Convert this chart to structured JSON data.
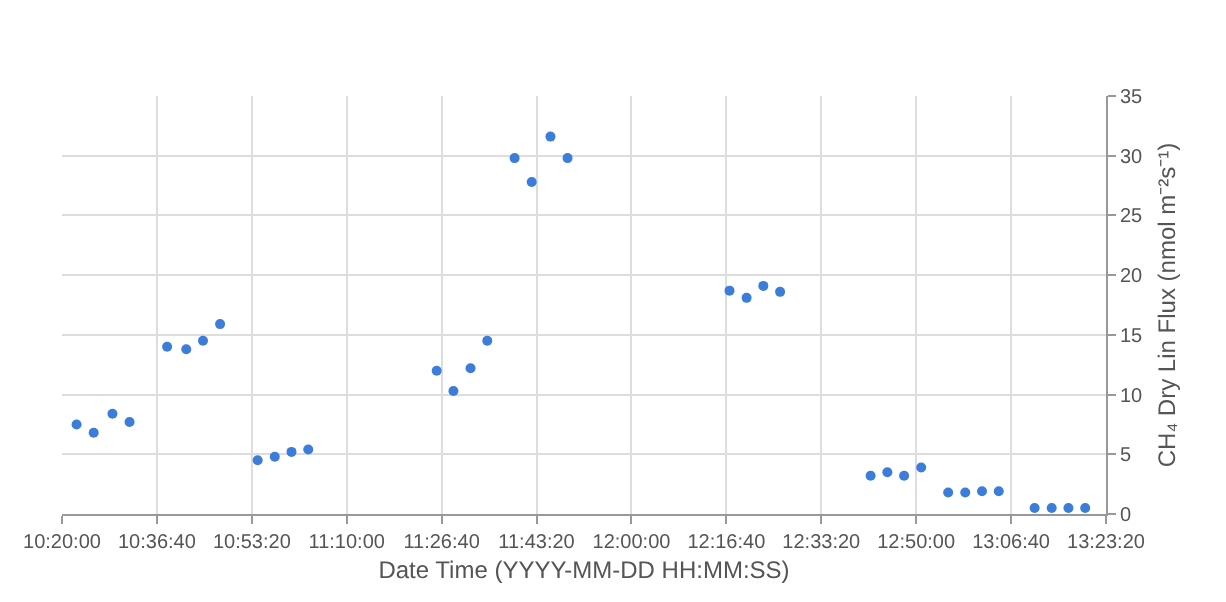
{
  "chart_data": {
    "type": "scatter",
    "xlabel": "Date Time (YYYY-MM-DD HH:MM:SS)",
    "ylabel": "CH₄ Dry Lin Flux (nmol m⁻²s⁻¹)",
    "x": [
      10.376,
      10.426,
      10.481,
      10.531,
      10.641,
      10.697,
      10.746,
      10.796,
      10.906,
      10.956,
      11.005,
      11.054,
      11.43,
      11.479,
      11.529,
      11.578,
      11.658,
      11.708,
      11.763,
      11.813,
      12.287,
      12.337,
      12.386,
      12.435,
      12.7,
      12.749,
      12.798,
      12.848,
      12.927,
      12.977,
      13.026,
      13.075,
      13.18,
      13.23,
      13.279,
      13.328
    ],
    "series": [
      {
        "color": "#3b7dd8",
        "values": [
          7.5,
          6.8,
          8.4,
          7.7,
          14.0,
          13.8,
          14.5,
          15.9,
          4.5,
          4.8,
          5.2,
          5.4,
          12.0,
          10.3,
          12.2,
          14.5,
          29.8,
          27.8,
          31.6,
          29.8,
          18.7,
          18.1,
          19.1,
          18.6,
          3.2,
          3.5,
          3.2,
          3.9,
          1.8,
          1.8,
          1.9,
          1.9,
          0.5,
          0.5,
          0.5,
          0.5
        ]
      }
    ],
    "xlim": [
      10.3333,
      13.3889
    ],
    "xticks": [
      {
        "value": 10.3333,
        "label": "10:20:00"
      },
      {
        "value": 10.6111,
        "label": "10:36:40"
      },
      {
        "value": 10.8889,
        "label": "10:53:20"
      },
      {
        "value": 11.1667,
        "label": "11:10:00"
      },
      {
        "value": 11.4444,
        "label": "11:26:40"
      },
      {
        "value": 11.7222,
        "label": "11:43:20"
      },
      {
        "value": 12.0,
        "label": "12:00:00"
      },
      {
        "value": 12.2778,
        "label": "12:16:40"
      },
      {
        "value": 12.5556,
        "label": "12:33:20"
      },
      {
        "value": 12.8333,
        "label": "12:50:00"
      },
      {
        "value": 13.1111,
        "label": "13:06:40"
      },
      {
        "value": 13.3889,
        "label": "13:23:20"
      }
    ],
    "ylim": [
      0,
      35
    ],
    "yticks": [
      0,
      5,
      10,
      15,
      20,
      25,
      30,
      35
    ],
    "grid": true,
    "marker": "circle",
    "legend": false
  }
}
